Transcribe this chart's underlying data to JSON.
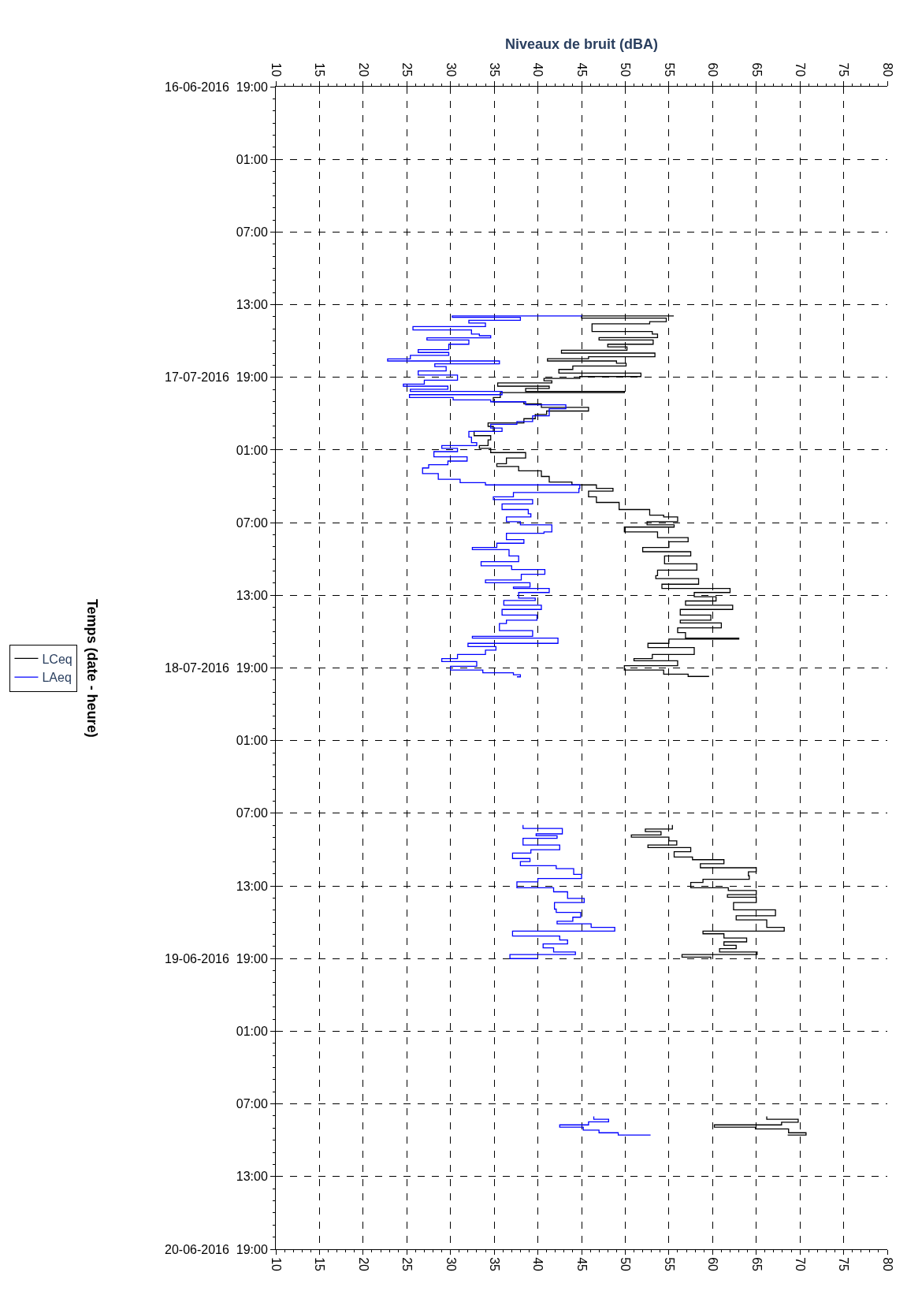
{
  "chart_data": {
    "type": "step",
    "orientation": "horizontal",
    "x2label": "Niveaux de bruit (dBA)",
    "ylabel": "Temps (date - heure)",
    "xlim": [
      10,
      80
    ],
    "xticks": [
      10,
      15,
      20,
      25,
      30,
      35,
      40,
      45,
      50,
      55,
      60,
      65,
      70,
      75,
      80
    ],
    "x2lim": [
      10,
      80
    ],
    "x2ticks": [
      10,
      15,
      20,
      25,
      30,
      35,
      40,
      45,
      50,
      55,
      60,
      65,
      70,
      75,
      80
    ],
    "ylim": [
      "2016-06-20T19:00",
      "2016-06-16T19:00"
    ],
    "yticks": [
      {
        "value": "2016-06-16T19:00",
        "label": "16-06-2016  19:00"
      },
      {
        "value": "2016-06-17T01:00",
        "label": "01:00"
      },
      {
        "value": "2016-06-17T07:00",
        "label": "07:00"
      },
      {
        "value": "2016-06-17T13:00",
        "label": "13:00"
      },
      {
        "value": "2016-06-17T19:00",
        "label": "17-07-2016  19:00"
      },
      {
        "value": "2016-06-18T01:00",
        "label": "01:00"
      },
      {
        "value": "2016-06-18T07:00",
        "label": "07:00"
      },
      {
        "value": "2016-06-18T13:00",
        "label": "13:00"
      },
      {
        "value": "2016-06-18T19:00",
        "label": "18-07-2016  19:00"
      },
      {
        "value": "2016-06-19T01:00",
        "label": "01:00"
      },
      {
        "value": "2016-06-19T07:00",
        "label": "07:00"
      },
      {
        "value": "2016-06-19T13:00",
        "label": "13:00"
      },
      {
        "value": "2016-06-19T19:00",
        "label": "19-06-2016  19:00"
      },
      {
        "value": "2016-06-20T01:00",
        "label": "01:00"
      },
      {
        "value": "2016-06-20T07:00",
        "label": "07:00"
      },
      {
        "value": "2016-06-20T13:00",
        "label": "13:00"
      },
      {
        "value": "2016-06-20T19:00",
        "label": "20-06-2016  19:00"
      }
    ],
    "grid": true,
    "legend": "left",
    "marker": "none",
    "line_style": "solid",
    "series": [
      {
        "name": "LCeq",
        "color": "#000000",
        "x": [
          "2016-06-17T13:53",
          "2016-06-17T13:56",
          "2016-06-17T14:07",
          "2016-06-17T14:24",
          "2016-06-17T14:35",
          "2016-06-17T15:13",
          "2016-06-17T15:26",
          "2016-06-17T15:43",
          "2016-06-17T15:55",
          "2016-06-17T16:16",
          "2016-06-17T16:29",
          "2016-06-17T16:46",
          "2016-06-17T17:00",
          "2016-06-17T17:18",
          "2016-06-17T17:28",
          "2016-06-17T17:39",
          "2016-06-17T17:50",
          "2016-06-17T18:04",
          "2016-06-17T18:21",
          "2016-06-17T18:39",
          "2016-06-17T18:56",
          "2016-06-17T19:05",
          "2016-06-17T19:17",
          "2016-06-17T19:28",
          "2016-06-17T19:44",
          "2016-06-17T19:55",
          "2016-06-17T20:10",
          "2016-06-17T20:16",
          "2016-06-17T20:40",
          "2016-06-17T21:01",
          "2016-06-17T21:11",
          "2016-06-17T21:29",
          "2016-06-17T21:47",
          "2016-06-17T22:04",
          "2016-06-17T22:25",
          "2016-06-17T22:46",
          "2016-06-17T23:03",
          "2016-06-17T23:28",
          "2016-06-17T23:49",
          "2016-06-18T00:10",
          "2016-06-18T00:38",
          "2016-06-18T00:52",
          "2016-06-18T01:13",
          "2016-06-18T01:40",
          "2016-06-18T02:08",
          "2016-06-18T02:22",
          "2016-06-18T02:43",
          "2016-06-18T03:11",
          "2016-06-18T03:39",
          "2016-06-18T03:53",
          "2016-06-18T04:10",
          "2016-06-18T04:24",
          "2016-06-18T04:52",
          "2016-06-18T05:20",
          "2016-06-18T05:55",
          "2016-06-18T06:23",
          "2016-06-18T06:32",
          "2016-06-18T06:55",
          "2016-06-18T07:11",
          "2016-06-18T07:22",
          "2016-06-18T07:46",
          "2016-06-18T08:14",
          "2016-06-18T08:35",
          "2016-06-18T09:03",
          "2016-06-18T09:24",
          "2016-06-18T09:45",
          "2016-06-18T10:06",
          "2016-06-18T10:24",
          "2016-06-18T10:55",
          "2016-06-18T11:23",
          "2016-06-18T11:37",
          "2016-06-18T12:05",
          "2016-06-18T12:26",
          "2016-06-18T12:46",
          "2016-06-18T13:07",
          "2016-06-18T13:28",
          "2016-06-18T13:49",
          "2016-06-18T14:10",
          "2016-06-18T14:38",
          "2016-06-18T15:03",
          "2016-06-18T15:17",
          "2016-06-18T15:41",
          "2016-06-18T16:05",
          "2016-06-18T16:32",
          "2016-06-18T16:37",
          "2016-06-18T16:58",
          "2016-06-18T17:19",
          "2016-06-18T17:53",
          "2016-06-18T18:14",
          "2016-06-18T18:24",
          "2016-06-18T18:49",
          "2016-06-18T19:10",
          "2016-06-18T19:31",
          "2016-06-18T19:42",
          null,
          "2016-06-19T07:58",
          "2016-06-19T08:18",
          "2016-06-19T08:31",
          "2016-06-19T08:47",
          "2016-06-19T08:58",
          "2016-06-19T09:17",
          "2016-06-19T09:37",
          "2016-06-19T09:50",
          "2016-06-19T10:10",
          "2016-06-19T10:37",
          "2016-06-19T10:50",
          "2016-06-19T11:10",
          "2016-06-19T11:30",
          "2016-06-19T11:50",
          "2016-06-19T12:10",
          "2016-06-19T12:27",
          "2016-06-19T12:43",
          "2016-06-19T13:09",
          "2016-06-19T13:23",
          "2016-06-19T13:43",
          "2016-06-19T13:56",
          "2016-06-19T14:22",
          "2016-06-19T14:58",
          "2016-06-19T15:28",
          "2016-06-19T15:48",
          "2016-06-19T16:25",
          "2016-06-19T16:44",
          "2016-06-19T16:57",
          "2016-06-19T17:18",
          "2016-06-19T17:37",
          "2016-06-19T17:54",
          "2016-06-19T18:11",
          "2016-06-19T18:27",
          "2016-06-19T18:40",
          "2016-06-19T18:53",
          "2016-06-19T19:04",
          null,
          "2016-06-20T08:02",
          "2016-06-20T08:16",
          "2016-06-20T08:31",
          "2016-06-20T08:44",
          "2016-06-20T08:55",
          "2016-06-20T09:04",
          "2016-06-20T09:23",
          "2016-06-20T09:34"
        ],
        "values": [
          55.5,
          45.0,
          54.7,
          52.8,
          46.2,
          53.1,
          53.7,
          47.0,
          53.2,
          48.0,
          50.2,
          42.7,
          53.4,
          45.8,
          41.1,
          49.0,
          50.1,
          44.0,
          42.4,
          51.8,
          44.8,
          40.7,
          41.6,
          35.4,
          41.3,
          38.6,
          49.9,
          35.7,
          34.9,
          38.4,
          40.4,
          45.8,
          41.0,
          39.7,
          38.4,
          34.3,
          34.9,
          32.7,
          34.6,
          34.3,
          33.3,
          34.6,
          38.6,
          36.4,
          35.3,
          37.8,
          40.4,
          41.3,
          43.9,
          46.7,
          48.6,
          45.8,
          46.7,
          49.3,
          52.8,
          54.4,
          56.0,
          52.5,
          55.6,
          49.9,
          53.7,
          57.2,
          55.0,
          52.0,
          57.5,
          54.5,
          54.5,
          58.2,
          53.7,
          53.5,
          58.4,
          54.2,
          62.0,
          57.9,
          60.4,
          56.9,
          62.3,
          56.3,
          59.8,
          56.3,
          61.0,
          56.0,
          56.9,
          63.0,
          55.0,
          52.6,
          57.9,
          53.1,
          51.0,
          56.0,
          49.9,
          54.4,
          57.2,
          59.6,
          null,
          55.4,
          52.3,
          54.1,
          50.7,
          55.0,
          55.9,
          52.6,
          57.5,
          55.6,
          57.7,
          61.3,
          58.6,
          65.0,
          64.1,
          64.2,
          58.9,
          57.5,
          61.8,
          65.0,
          61.7,
          65.0,
          62.4,
          67.2,
          62.7,
          66.2,
          68.2,
          58.9,
          61.3,
          63.9,
          61.3,
          62.7,
          60.8,
          65.1,
          56.5,
          59.8,
          59.8,
          null,
          66.2,
          69.8,
          67.9,
          60.2,
          64.9,
          68.7,
          70.7,
          68.6
        ]
      },
      {
        "name": "LAeq",
        "color": "#0000ff",
        "x": [
          "2016-06-17T13:53",
          "2016-06-17T13:56",
          "2016-06-17T14:03",
          "2016-06-17T14:17",
          "2016-06-17T14:31",
          "2016-06-17T14:49",
          "2016-06-17T15:05",
          "2016-06-17T15:26",
          "2016-06-17T15:34",
          "2016-06-17T15:44",
          "2016-06-17T15:55",
          "2016-06-17T16:16",
          "2016-06-17T16:43",
          "2016-06-17T16:57",
          "2016-06-17T17:11",
          "2016-06-17T17:29",
          "2016-06-17T17:39",
          "2016-06-17T17:53",
          "2016-06-17T18:07",
          "2016-06-17T18:28",
          "2016-06-17T18:49",
          "2016-06-17T19:14",
          "2016-06-17T19:34",
          "2016-06-17T19:44",
          "2016-06-17T19:59",
          "2016-06-17T20:10",
          "2016-06-17T20:26",
          "2016-06-17T20:40",
          "2016-06-17T20:52",
          "2016-06-17T21:01",
          "2016-06-17T21:16",
          "2016-06-17T21:36",
          "2016-06-17T22:11",
          "2016-06-17T22:39",
          "2016-06-17T22:53",
          "2016-06-17T23:11",
          "2016-06-17T23:28",
          "2016-06-17T23:56",
          "2016-06-18T00:24",
          "2016-06-18T00:38",
          "2016-06-18T00:52",
          "2016-06-18T01:08",
          "2016-06-18T01:34",
          "2016-06-18T01:55",
          "2016-06-18T02:13",
          "2016-06-18T02:29",
          "2016-06-18T02:57",
          "2016-06-18T03:25",
          "2016-06-18T03:42",
          "2016-06-18T03:53",
          "2016-06-18T04:10",
          "2016-06-18T04:31",
          "2016-06-18T04:52",
          "2016-06-18T05:06",
          "2016-06-18T05:27",
          "2016-06-18T05:55",
          "2016-06-18T06:16",
          "2016-06-18T06:32",
          "2016-06-18T06:55",
          "2016-06-18T07:11",
          "2016-06-18T07:46",
          "2016-06-18T07:53",
          "2016-06-18T08:24",
          "2016-06-18T08:42",
          "2016-06-18T09:03",
          "2016-06-18T09:14",
          "2016-06-18T09:45",
          "2016-06-18T10:13",
          "2016-06-18T10:34",
          "2016-06-18T10:52",
          "2016-06-18T11:16",
          "2016-06-18T11:44",
          "2016-06-18T11:58",
          "2016-06-18T12:19",
          "2016-06-18T12:26",
          "2016-06-18T12:46",
          "2016-06-18T13:14",
          "2016-06-18T13:26",
          "2016-06-18T13:49",
          "2016-06-18T14:10",
          "2016-06-18T14:38",
          "2016-06-18T15:03",
          "2016-06-18T15:20",
          "2016-06-18T15:55",
          "2016-06-18T16:23",
          "2016-06-18T16:32",
          "2016-06-18T16:58",
          "2016-06-18T17:14",
          "2016-06-18T17:32",
          "2016-06-18T17:53",
          "2016-06-18T18:14",
          "2016-06-18T18:28",
          "2016-06-18T18:52",
          "2016-06-18T19:10",
          "2016-06-18T19:24",
          "2016-06-18T19:34",
          "2016-06-18T19:44",
          null,
          "2016-06-19T07:58",
          "2016-06-19T08:15",
          "2016-06-19T08:42",
          "2016-06-19T08:51",
          "2016-06-19T09:04",
          "2016-06-19T09:37",
          "2016-06-19T10:01",
          "2016-06-19T10:17",
          "2016-06-19T10:44",
          "2016-06-19T10:59",
          "2016-06-19T11:20",
          "2016-06-19T11:34",
          "2016-06-19T12:03",
          "2016-06-19T12:23",
          "2016-06-19T12:40",
          "2016-06-19T13:09",
          "2016-06-19T13:29",
          "2016-06-19T14:02",
          "2016-06-19T14:22",
          "2016-06-19T14:55",
          "2016-06-19T15:11",
          "2016-06-19T15:35",
          "2016-06-19T15:55",
          "2016-06-19T16:08",
          "2016-06-19T16:25",
          "2016-06-19T16:44",
          "2016-06-19T17:08",
          "2016-06-19T17:28",
          "2016-06-19T17:47",
          "2016-06-19T18:07",
          "2016-06-19T18:27",
          "2016-06-19T18:40",
          "2016-06-19T19:00",
          null,
          "2016-06-20T08:02",
          "2016-06-20T08:16",
          "2016-06-20T08:29",
          "2016-06-20T08:44",
          "2016-06-20T08:55",
          "2016-06-20T09:10",
          "2016-06-20T09:23",
          "2016-06-20T09:34"
        ],
        "values": [
          45.0,
          30.2,
          38.0,
          32.1,
          34.0,
          25.7,
          32.4,
          33.3,
          34.6,
          27.3,
          32.1,
          29.8,
          26.3,
          29.8,
          25.4,
          22.8,
          35.6,
          28.2,
          29.5,
          26.3,
          30.8,
          27.0,
          24.6,
          29.7,
          25.4,
          35.9,
          25.3,
          30.3,
          34.6,
          38.6,
          43.2,
          41.3,
          39.4,
          37.6,
          34.6,
          35.9,
          32.1,
          32.4,
          33.0,
          29.0,
          30.8,
          28.1,
          31.9,
          29.7,
          27.5,
          26.8,
          28.6,
          31.1,
          34.0,
          44.8,
          44.7,
          37.2,
          34.9,
          39.4,
          35.9,
          38.9,
          39.2,
          36.4,
          38.0,
          41.6,
          40.7,
          36.4,
          38.4,
          35.3,
          32.5,
          36.7,
          37.8,
          33.5,
          37.0,
          40.8,
          38.1,
          34.0,
          39.1,
          37.2,
          41.3,
          37.8,
          39.7,
          36.1,
          40.4,
          35.9,
          39.9,
          36.4,
          35.6,
          39.4,
          32.5,
          42.3,
          32.0,
          35.2,
          34.0,
          30.8,
          29.0,
          33.0,
          30.0,
          33.7,
          37.2,
          38.0,
          37.6,
          null,
          38.3,
          42.8,
          39.8,
          42.2,
          38.3,
          42.5,
          39.2,
          37.1,
          39.1,
          38.0,
          42.1,
          44.1,
          45.0,
          40.0,
          37.6,
          41.8,
          43.4,
          45.3,
          41.9,
          42.1,
          44.9,
          44.0,
          42.2,
          46.1,
          48.8,
          37.1,
          42.5,
          43.4,
          40.6,
          41.8,
          44.3,
          36.8,
          40.0,
          null,
          46.4,
          48.1,
          45.8,
          42.5,
          45.2,
          47.0,
          49.2,
          52.9
        ]
      }
    ]
  }
}
